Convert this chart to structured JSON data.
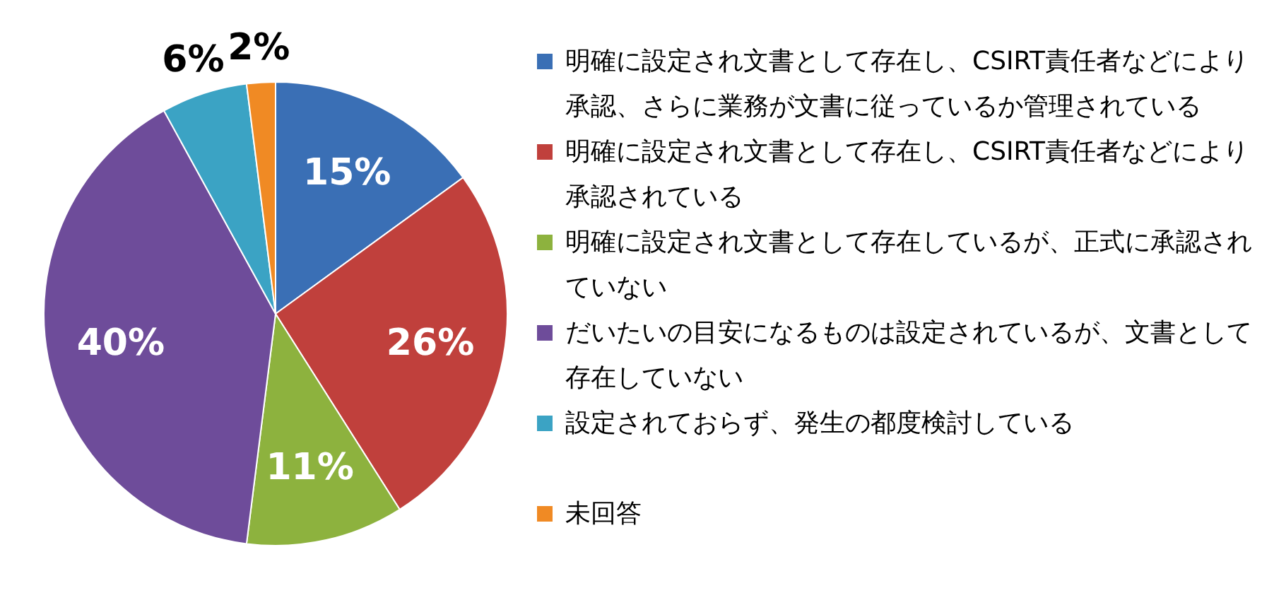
{
  "chart_data": {
    "type": "pie",
    "legend": "right",
    "categories": [
      "明確に設定され文書として存在し、CSIRT責任者などにより承認、さらに業務が文書に従っているか管理されている",
      "明確に設定され文書として存在し、CSIRT責任者などにより承認されている",
      "明確に設定され文書として存在しているが、正式に承認されていない",
      "だいたいの目安になるものは設定されているが、文書として存在していない",
      "設定されておらず、発生の都度検討している",
      "未回答"
    ],
    "values": [
      15,
      26,
      11,
      40,
      6,
      2
    ],
    "value_labels": [
      "15%",
      "26%",
      "11%",
      "40%",
      "6%",
      "2%"
    ],
    "colors": [
      "#3a6fb5",
      "#c0403c",
      "#8db23e",
      "#6e4c9a",
      "#3ba3c4",
      "#f08a24"
    ]
  }
}
